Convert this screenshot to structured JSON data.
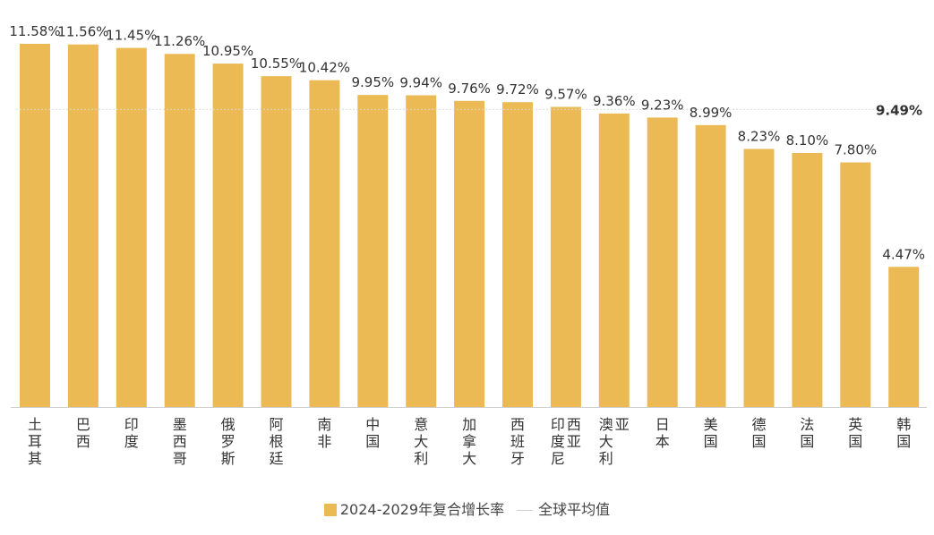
{
  "chart_data": {
    "type": "bar",
    "categories": [
      "土耳其",
      "巴西",
      "印度",
      "墨西哥",
      "俄罗斯",
      "阿根廷",
      "南非",
      "中国",
      "意大利",
      "加拿大",
      "西班牙",
      "印度尼西亚",
      "澳大利亚",
      "日本",
      "美国",
      "德国",
      "法国",
      "英国",
      "韩国"
    ],
    "values": [
      11.58,
      11.56,
      11.45,
      11.26,
      10.95,
      10.55,
      10.42,
      9.95,
      9.94,
      9.76,
      9.72,
      9.57,
      9.36,
      9.23,
      8.99,
      8.23,
      8.1,
      7.8,
      4.47
    ],
    "value_labels": [
      "11.58%",
      "11.56%",
      "11.45%",
      "11.26%",
      "10.95%",
      "10.55%",
      "10.42%",
      "9.95%",
      "9.94%",
      "9.76%",
      "9.72%",
      "9.57%",
      "9.36%",
      "9.23%",
      "8.99%",
      "8.23%",
      "8.10%",
      "7.80%",
      "4.47%"
    ],
    "average_line": {
      "name": "全球平均值",
      "value": 9.49,
      "label": "9.49%"
    },
    "series_name": "2024-2029年复合增长率",
    "ylim": [
      0,
      11.58
    ],
    "bar_color": "#EBBA55",
    "average_line_color": "#d9d9d9",
    "grid": false,
    "legend_position": "bottom"
  },
  "legend": {
    "series_label": "2024-2029年复合增长率",
    "line_label": "全球平均值"
  }
}
